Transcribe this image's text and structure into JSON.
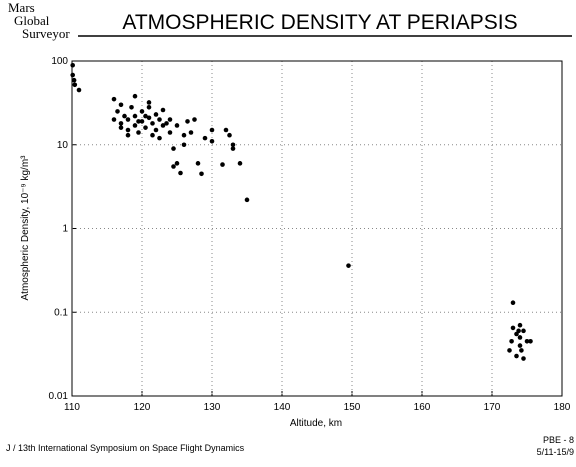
{
  "header": {
    "logo": [
      "Mars",
      "Global",
      "Surveyor"
    ]
  },
  "chart_data": {
    "type": "scatter",
    "title": "ATMOSPHERIC DENSITY AT PERIAPSIS",
    "x_label": "Altitude, km",
    "y_label": "Atmospheric Density, 10⁻⁹ kg/m³",
    "x": [
      110.1,
      110.3,
      110.4,
      111,
      110.1,
      116,
      119,
      121,
      116,
      116.5,
      117,
      117,
      117.5,
      118,
      118,
      118.5,
      119,
      119,
      119.5,
      120,
      120,
      120.5,
      121,
      121,
      121.5,
      122,
      122,
      122.5,
      123,
      123,
      117,
      118,
      119.5,
      120.5,
      121.5,
      122.5,
      123.5,
      124,
      124,
      124.5,
      125,
      126,
      126.5,
      127,
      127.5,
      128,
      128.5,
      125,
      125.5,
      124.5,
      126,
      129,
      130,
      130,
      131.5,
      132,
      132.5,
      133,
      133,
      134,
      135,
      149.5,
      172.5,
      173,
      173,
      173.5,
      173.5,
      174,
      174,
      174,
      174.5,
      175,
      174.5,
      172.8,
      173.8,
      175.5,
      174.2
    ],
    "values": [
      89,
      59,
      52,
      45,
      68,
      35,
      38,
      32,
      20,
      25,
      18,
      30,
      22,
      15,
      20,
      28,
      17,
      22,
      14,
      19,
      25,
      16,
      21,
      28,
      18,
      23,
      15,
      20,
      17,
      26,
      16,
      13,
      19,
      22,
      13,
      12,
      18,
      20,
      14,
      9,
      17,
      10,
      19,
      14,
      20,
      6,
      4.5,
      6,
      4.6,
      5.5,
      13,
      12,
      15,
      11,
      5.8,
      15,
      13,
      10,
      9,
      6,
      2.2,
      0.36,
      0.035,
      0.13,
      0.065,
      0.055,
      0.03,
      0.07,
      0.05,
      0.04,
      0.06,
      0.045,
      0.028,
      0.045,
      0.06,
      0.045,
      0.035
    ],
    "color": "#000000",
    "xlim": [
      110,
      180
    ],
    "xticks": [
      110,
      120,
      130,
      140,
      150,
      160,
      170,
      180
    ],
    "ylim": [
      0.01,
      100
    ],
    "yticks": [
      0.01,
      0.1,
      1,
      10,
      100
    ],
    "log_y": true,
    "grid": true
  },
  "footer": {
    "left": "J / 13th International Symposium on Space Flight Dynamics",
    "right": [
      "PBE - 8",
      "5/11-15/9"
    ]
  }
}
